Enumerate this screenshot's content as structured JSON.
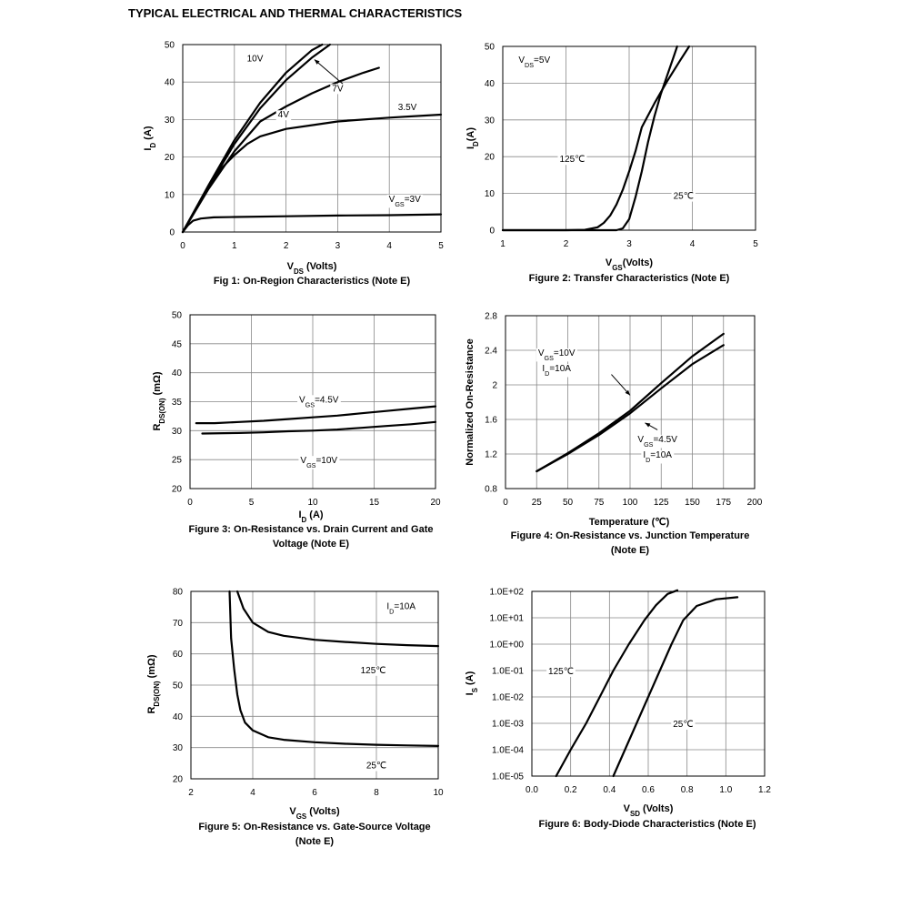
{
  "page": {
    "title": "TYPICAL ELECTRICAL AND THERMAL CHARACTERISTICS"
  },
  "chart_data": [
    {
      "type": "line",
      "title": "Fig 1: On-Region Characteristics (Note E)",
      "title_lines": [
        "Fig 1: On-Region Characteristics (Note E)"
      ],
      "xlabel": "V|DS| (Volts)",
      "ylabel": "I|D| (A)",
      "xlim": [
        0,
        5
      ],
      "ylim": [
        0,
        50
      ],
      "xticks": [
        0,
        1,
        2,
        3,
        4,
        5
      ],
      "yticks": [
        0,
        10,
        20,
        30,
        40,
        50
      ],
      "xticklabels": [
        "0",
        "1",
        "2",
        "3",
        "4",
        "5"
      ],
      "yticklabels": [
        "0",
        "10",
        "20",
        "30",
        "40",
        "50"
      ],
      "grid": true,
      "series": [
        {
          "name": "10V",
          "points": [
            [
              0,
              0
            ],
            [
              0.5,
              12.5
            ],
            [
              1,
              24.5
            ],
            [
              1.5,
              34.5
            ],
            [
              2,
              42.5
            ],
            [
              2.5,
              48.5
            ],
            [
              2.7,
              50
            ]
          ]
        },
        {
          "name": "7V",
          "points": [
            [
              0,
              0
            ],
            [
              0.5,
              12
            ],
            [
              1,
              23.5
            ],
            [
              1.5,
              33
            ],
            [
              2,
              40.5
            ],
            [
              2.5,
              46.5
            ],
            [
              2.85,
              50
            ]
          ]
        },
        {
          "name": "4V",
          "points": [
            [
              0,
              0
            ],
            [
              0.5,
              11.5
            ],
            [
              1,
              21.5
            ],
            [
              1.5,
              29.5
            ],
            [
              2,
              33.5
            ],
            [
              2.5,
              37
            ],
            [
              3,
              40
            ],
            [
              3.5,
              42.5
            ],
            [
              3.8,
              43.8
            ]
          ]
        },
        {
          "name": "3.5V",
          "points": [
            [
              0,
              0
            ],
            [
              0.25,
              6
            ],
            [
              0.5,
              12
            ],
            [
              0.75,
              17
            ],
            [
              1,
              20.5
            ],
            [
              1.25,
              23.5
            ],
            [
              1.5,
              25.5
            ],
            [
              2,
              27.5
            ],
            [
              2.5,
              28.5
            ],
            [
              3,
              29.5
            ],
            [
              4,
              30.5
            ],
            [
              5,
              31.3
            ]
          ]
        },
        {
          "name": "V|GS|=3V",
          "points": [
            [
              0,
              0
            ],
            [
              0.1,
              1.8
            ],
            [
              0.2,
              3
            ],
            [
              0.35,
              3.6
            ],
            [
              0.6,
              3.9
            ],
            [
              1,
              4
            ],
            [
              2,
              4.2
            ],
            [
              3,
              4.4
            ],
            [
              4,
              4.5
            ],
            [
              5,
              4.7
            ]
          ]
        }
      ],
      "labels": [
        {
          "text": "10V",
          "x": 1.4,
          "y": 46.5
        },
        {
          "text": "7V",
          "x": 3.0,
          "y": 38.5
        },
        {
          "text": "4V",
          "x": 1.95,
          "y": 31.5
        },
        {
          "text": "3.5V",
          "x": 4.35,
          "y": 33.5
        },
        {
          "text": "V|GS|=3V",
          "x": 4.3,
          "y": 9
        }
      ],
      "annotations": [
        {
          "from": [
            3.1,
            39.5
          ],
          "to": [
            2.55,
            46
          ]
        }
      ]
    },
    {
      "type": "line",
      "title": "Figure 2: Transfer Characteristics (Note E)",
      "title_lines": [
        "Figure 2: Transfer Characteristics (Note E)"
      ],
      "xlabel": "V|GS|(Volts)",
      "ylabel": "I|D|(A)",
      "xlim": [
        1,
        5
      ],
      "ylim": [
        0,
        50
      ],
      "xticks": [
        1,
        2,
        3,
        4,
        5
      ],
      "yticks": [
        0,
        10,
        20,
        30,
        40,
        50
      ],
      "xticklabels": [
        "1",
        "2",
        "3",
        "4",
        "5"
      ],
      "yticklabels": [
        "0",
        "10",
        "20",
        "30",
        "40",
        "50"
      ],
      "grid": true,
      "series": [
        {
          "name": "125℃",
          "points": [
            [
              1,
              0
            ],
            [
              2,
              0
            ],
            [
              2.3,
              0.1
            ],
            [
              2.5,
              0.8
            ],
            [
              2.6,
              2
            ],
            [
              2.7,
              4
            ],
            [
              2.8,
              7
            ],
            [
              2.9,
              11
            ],
            [
              3,
              16
            ],
            [
              3.1,
              21.5
            ],
            [
              3.2,
              28
            ],
            [
              3.4,
              34.5
            ],
            [
              3.6,
              40.5
            ],
            [
              3.8,
              46
            ],
            [
              3.95,
              50
            ]
          ]
        },
        {
          "name": "25℃",
          "points": [
            [
              1,
              0
            ],
            [
              2.8,
              0
            ],
            [
              2.9,
              0.5
            ],
            [
              3,
              3
            ],
            [
              3.1,
              9
            ],
            [
              3.2,
              16
            ],
            [
              3.3,
              24
            ],
            [
              3.4,
              31
            ],
            [
              3.5,
              37
            ],
            [
              3.6,
              42
            ],
            [
              3.7,
              47
            ],
            [
              3.76,
              50
            ]
          ]
        }
      ],
      "labels": [
        {
          "text": "V|DS|=5V",
          "x": 1.5,
          "y": 46.5
        },
        {
          "text": "125℃",
          "x": 2.1,
          "y": 19.5
        },
        {
          "text": "25℃",
          "x": 3.86,
          "y": 9.5
        }
      ],
      "annotations": []
    },
    {
      "type": "line",
      "title": "Figure 3: On-Resistance vs. Drain Current and Gate Voltage (Note E)",
      "title_lines": [
        "Figure 3: On-Resistance vs. Drain Current and Gate",
        "Voltage (Note E)"
      ],
      "xlabel": "I|D| (A)",
      "ylabel": "R|DS(ON)| (mΩ)",
      "xlim": [
        0,
        20
      ],
      "ylim": [
        20,
        50
      ],
      "xticks": [
        0,
        5,
        10,
        15,
        20
      ],
      "yticks": [
        20,
        25,
        30,
        35,
        40,
        45,
        50
      ],
      "xticklabels": [
        "0",
        "5",
        "10",
        "15",
        "20"
      ],
      "yticklabels": [
        "20",
        "25",
        "30",
        "35",
        "40",
        "45",
        "50"
      ],
      "grid": true,
      "series": [
        {
          "name": "V|GS|=4.5V",
          "points": [
            [
              0.5,
              31.3
            ],
            [
              2,
              31.3
            ],
            [
              4,
              31.5
            ],
            [
              6,
              31.7
            ],
            [
              8,
              32
            ],
            [
              10,
              32.3
            ],
            [
              12,
              32.6
            ],
            [
              14,
              33
            ],
            [
              16,
              33.4
            ],
            [
              18,
              33.8
            ],
            [
              20,
              34.2
            ]
          ]
        },
        {
          "name": "V|GS|=10V",
          "points": [
            [
              1,
              29.5
            ],
            [
              4,
              29.6
            ],
            [
              6,
              29.7
            ],
            [
              8,
              29.9
            ],
            [
              10,
              30
            ],
            [
              12,
              30.2
            ],
            [
              14,
              30.5
            ],
            [
              16,
              30.8
            ],
            [
              18,
              31.1
            ],
            [
              20,
              31.5
            ]
          ]
        }
      ],
      "labels": [
        {
          "text": "V|GS|=4.5V",
          "x": 10.5,
          "y": 35.5
        },
        {
          "text": "V|GS|=10V",
          "x": 10.5,
          "y": 25
        }
      ],
      "annotations": []
    },
    {
      "type": "line",
      "title": "Figure 4: On-Resistance vs. Junction Temperature (Note E)",
      "title_lines": [
        "Figure 4: On-Resistance vs. Junction Temperature",
        "(Note E)"
      ],
      "xlabel": "Temperature (℃)",
      "ylabel": "Normalized On-Resistance",
      "xlim": [
        0,
        200
      ],
      "ylim": [
        0.8,
        2.8
      ],
      "xticks": [
        0,
        25,
        50,
        75,
        100,
        125,
        150,
        175,
        200
      ],
      "yticks": [
        0.8,
        1.2,
        1.6,
        2,
        2.4,
        2.8
      ],
      "xticklabels": [
        "0",
        "25",
        "50",
        "75",
        "100",
        "125",
        "150",
        "175",
        "200"
      ],
      "yticklabels": [
        "0.8",
        "1.2",
        "1.6",
        "2",
        "2.4",
        "2.8"
      ],
      "grid": true,
      "series": [
        {
          "name": "V|GS|=10V I|D|=10A",
          "points": [
            [
              25,
              1
            ],
            [
              50,
              1.21
            ],
            [
              75,
              1.44
            ],
            [
              100,
              1.7
            ],
            [
              125,
              2.02
            ],
            [
              150,
              2.33
            ],
            [
              175,
              2.59
            ]
          ]
        },
        {
          "name": "V|GS|=4.5V I|D|=10A",
          "points": [
            [
              25,
              1
            ],
            [
              50,
              1.2
            ],
            [
              75,
              1.42
            ],
            [
              100,
              1.67
            ],
            [
              125,
              1.96
            ],
            [
              150,
              2.24
            ],
            [
              175,
              2.46
            ]
          ]
        }
      ],
      "labels": [
        {
          "text": "V|GS|=10V",
          "x": 41,
          "y": 2.38
        },
        {
          "text": "I|D|=10A",
          "x": 41,
          "y": 2.2
        },
        {
          "text": "V|GS|=4.5V",
          "x": 122,
          "y": 1.38
        },
        {
          "text": "I|D|=10A",
          "x": 122,
          "y": 1.2
        }
      ],
      "annotations": [
        {
          "from": [
            85,
            2.12
          ],
          "to": [
            100,
            1.88
          ]
        },
        {
          "from": [
            122,
            1.48
          ],
          "to": [
            112,
            1.56
          ]
        }
      ]
    },
    {
      "type": "line",
      "title": "Figure 5: On-Resistance vs. Gate-Source Voltage (Note E)",
      "title_lines": [
        "Figure 5: On-Resistance vs. Gate-Source Voltage",
        "(Note E)"
      ],
      "xlabel": "V|GS| (Volts)",
      "ylabel": "R|DS(ON)| (mΩ)",
      "xlim": [
        2,
        10
      ],
      "ylim": [
        20,
        80
      ],
      "xticks": [
        2,
        4,
        6,
        8,
        10
      ],
      "yticks": [
        20,
        30,
        40,
        50,
        60,
        70,
        80
      ],
      "xticklabels": [
        "2",
        "4",
        "6",
        "8",
        "10"
      ],
      "yticklabels": [
        "20",
        "30",
        "40",
        "50",
        "60",
        "70",
        "80"
      ],
      "grid": true,
      "series": [
        {
          "name": "125℃",
          "points": [
            [
              3.5,
              80
            ],
            [
              3.7,
              74.5
            ],
            [
              4,
              70
            ],
            [
              4.5,
              67
            ],
            [
              5,
              65.8
            ],
            [
              6,
              64.5
            ],
            [
              7,
              63.8
            ],
            [
              8,
              63.2
            ],
            [
              9,
              62.8
            ],
            [
              10,
              62.5
            ]
          ]
        },
        {
          "name": "25℃",
          "points": [
            [
              3.25,
              80
            ],
            [
              3.3,
              65
            ],
            [
              3.4,
              55
            ],
            [
              3.5,
              47
            ],
            [
              3.6,
              42
            ],
            [
              3.75,
              38
            ],
            [
              4,
              35.5
            ],
            [
              4.5,
              33.3
            ],
            [
              5,
              32.5
            ],
            [
              6,
              31.7
            ],
            [
              7,
              31.2
            ],
            [
              8,
              30.9
            ],
            [
              9,
              30.7
            ],
            [
              10,
              30.5
            ]
          ]
        }
      ],
      "labels": [
        {
          "text": "I|D|=10A",
          "x": 8.8,
          "y": 75.5
        },
        {
          "text": "125℃",
          "x": 7.9,
          "y": 55
        },
        {
          "text": "25℃",
          "x": 8,
          "y": 24.5
        }
      ],
      "annotations": []
    },
    {
      "type": "line",
      "title": "Figure 6: Body-Diode Characteristics (Note E)",
      "title_lines": [
        "Figure 6: Body-Diode Characteristics (Note E)"
      ],
      "xlabel": "V|SD| (Volts)",
      "ylabel": "I|S| (A)",
      "xscale": "linear",
      "yscale": "log",
      "xlim": [
        0,
        1.2
      ],
      "ylim": [
        1e-05,
        100
      ],
      "xticks": [
        0,
        0.2,
        0.4,
        0.6,
        0.8,
        1.0,
        1.2
      ],
      "yticks": [
        1e-05,
        0.0001,
        0.001,
        0.01,
        0.1,
        1,
        10,
        100
      ],
      "xticklabels": [
        "0.0",
        "0.2",
        "0.4",
        "0.6",
        "0.8",
        "1.0",
        "1.2"
      ],
      "yticklabels": [
        "1.0E-05",
        "1.0E-04",
        "1.0E-03",
        "1.0E-02",
        "1.0E-01",
        "1.0E+00",
        "1.0E+01",
        "1.0E+02"
      ],
      "grid": true,
      "series": [
        {
          "name": "125℃",
          "points": [
            [
              0.125,
              1e-05
            ],
            [
              0.2,
              0.0001
            ],
            [
              0.28,
              0.001
            ],
            [
              0.35,
              0.01
            ],
            [
              0.42,
              0.1
            ],
            [
              0.5,
              1
            ],
            [
              0.58,
              8
            ],
            [
              0.64,
              30
            ],
            [
              0.7,
              80.0
            ],
            [
              0.75,
              110.0
            ]
          ]
        },
        {
          "name": "25℃",
          "points": [
            [
              0.42,
              1e-05
            ],
            [
              0.48,
              0.0001
            ],
            [
              0.54,
              0.001
            ],
            [
              0.6,
              0.01
            ],
            [
              0.66,
              0.1
            ],
            [
              0.72,
              1
            ],
            [
              0.78,
              8
            ],
            [
              0.85,
              28
            ],
            [
              0.95,
              50
            ],
            [
              1.06,
              60
            ]
          ]
        }
      ],
      "labels": [
        {
          "text": "125℃",
          "x": 0.15,
          "y": 0.1
        },
        {
          "text": "25℃",
          "x": 0.78,
          "y": 0.001
        }
      ],
      "annotations": []
    }
  ]
}
